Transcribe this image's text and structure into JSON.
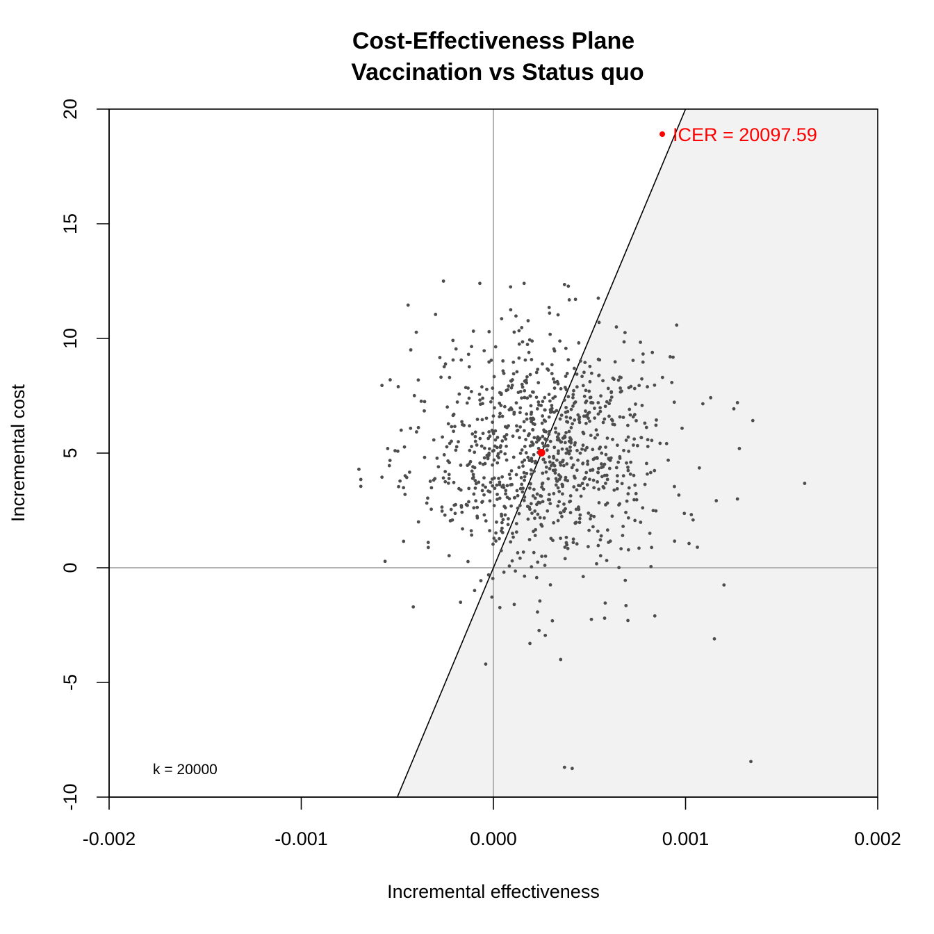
{
  "chart_data": {
    "type": "scatter",
    "title": [
      "Cost-Effectiveness Plane",
      "Vaccination vs Status quo"
    ],
    "xlabel": "Incremental effectiveness",
    "ylabel": "Incremental cost",
    "xlim": [
      -0.002,
      0.002
    ],
    "ylim": [
      -10,
      20
    ],
    "x_ticks": [
      -0.002,
      -0.001,
      0,
      0.001,
      0.002
    ],
    "x_tick_labels": [
      "-0.002",
      "-0.001",
      "0.000",
      "0.001",
      "0.002"
    ],
    "y_ticks": [
      -10,
      -5,
      0,
      5,
      10,
      15,
      20
    ],
    "y_tick_labels": [
      "-10",
      "-5",
      "0",
      "5",
      "10",
      "15",
      "20"
    ],
    "grid": false,
    "reference_lines": {
      "x": 0,
      "y": 0,
      "color": "#aaaaaa"
    },
    "willingness_to_pay": {
      "k": 20000,
      "label": "k = 20000"
    },
    "acceptability_region_color": "#f2f2f2",
    "point_color": "#4d4d4d",
    "icer": {
      "x": 0.00025,
      "y": 5.02,
      "color": "#ff0000",
      "legend_text": "ICER = 20097.59",
      "legend_position": "top-right"
    },
    "samples": {
      "count": 1000,
      "x_mean": 0.00025,
      "x_sd": 0.00031,
      "y_mean": 5.02,
      "y_sd": 2.55,
      "outliers": [
        [
          -0.00026,
          12.5
        ],
        [
          0.00037,
          12.35
        ],
        [
          0.00039,
          12.28
        ],
        [
          -0.00069,
          3.85
        ],
        [
          -0.00069,
          3.55
        ],
        [
          -0.00058,
          3.95
        ],
        [
          -0.00058,
          7.95
        ],
        [
          -0.00055,
          5.2
        ],
        [
          -0.00048,
          6.0
        ],
        [
          -0.00043,
          9.5
        ],
        [
          -0.00046,
          3.2
        ],
        [
          -0.00039,
          2.0
        ],
        [
          0.00162,
          3.68
        ],
        [
          0.00135,
          6.42
        ],
        [
          0.00127,
          7.2
        ],
        [
          0.00128,
          5.2
        ],
        [
          0.00127,
          3.0
        ],
        [
          0.00109,
          7.15
        ],
        [
          0.0012,
          -0.75
        ],
        [
          0.00115,
          -3.1
        ],
        [
          0.00084,
          -2.1
        ],
        [
          0.00069,
          -1.65
        ],
        [
          0.0007,
          -2.3
        ],
        [
          0.00051,
          -2.25
        ],
        [
          0.00027,
          -2.95
        ],
        [
          0.00019,
          -3.3
        ],
        [
          0.00035,
          -4.0
        ],
        [
          -4e-05,
          -4.2
        ],
        [
          0.00037,
          -8.7
        ],
        [
          0.00041,
          -8.75
        ],
        [
          0.00134,
          -8.45
        ],
        [
          0.00082,
          0.05
        ],
        [
          0.00092,
          9.2
        ],
        [
          0.00088,
          8.3
        ],
        [
          0.00064,
          10.5
        ],
        [
          0.00055,
          10.7
        ],
        [
          0.00029,
          11.35
        ],
        [
          9e-05,
          11.25
        ],
        [
          0.00068,
          9.85
        ]
      ]
    }
  }
}
